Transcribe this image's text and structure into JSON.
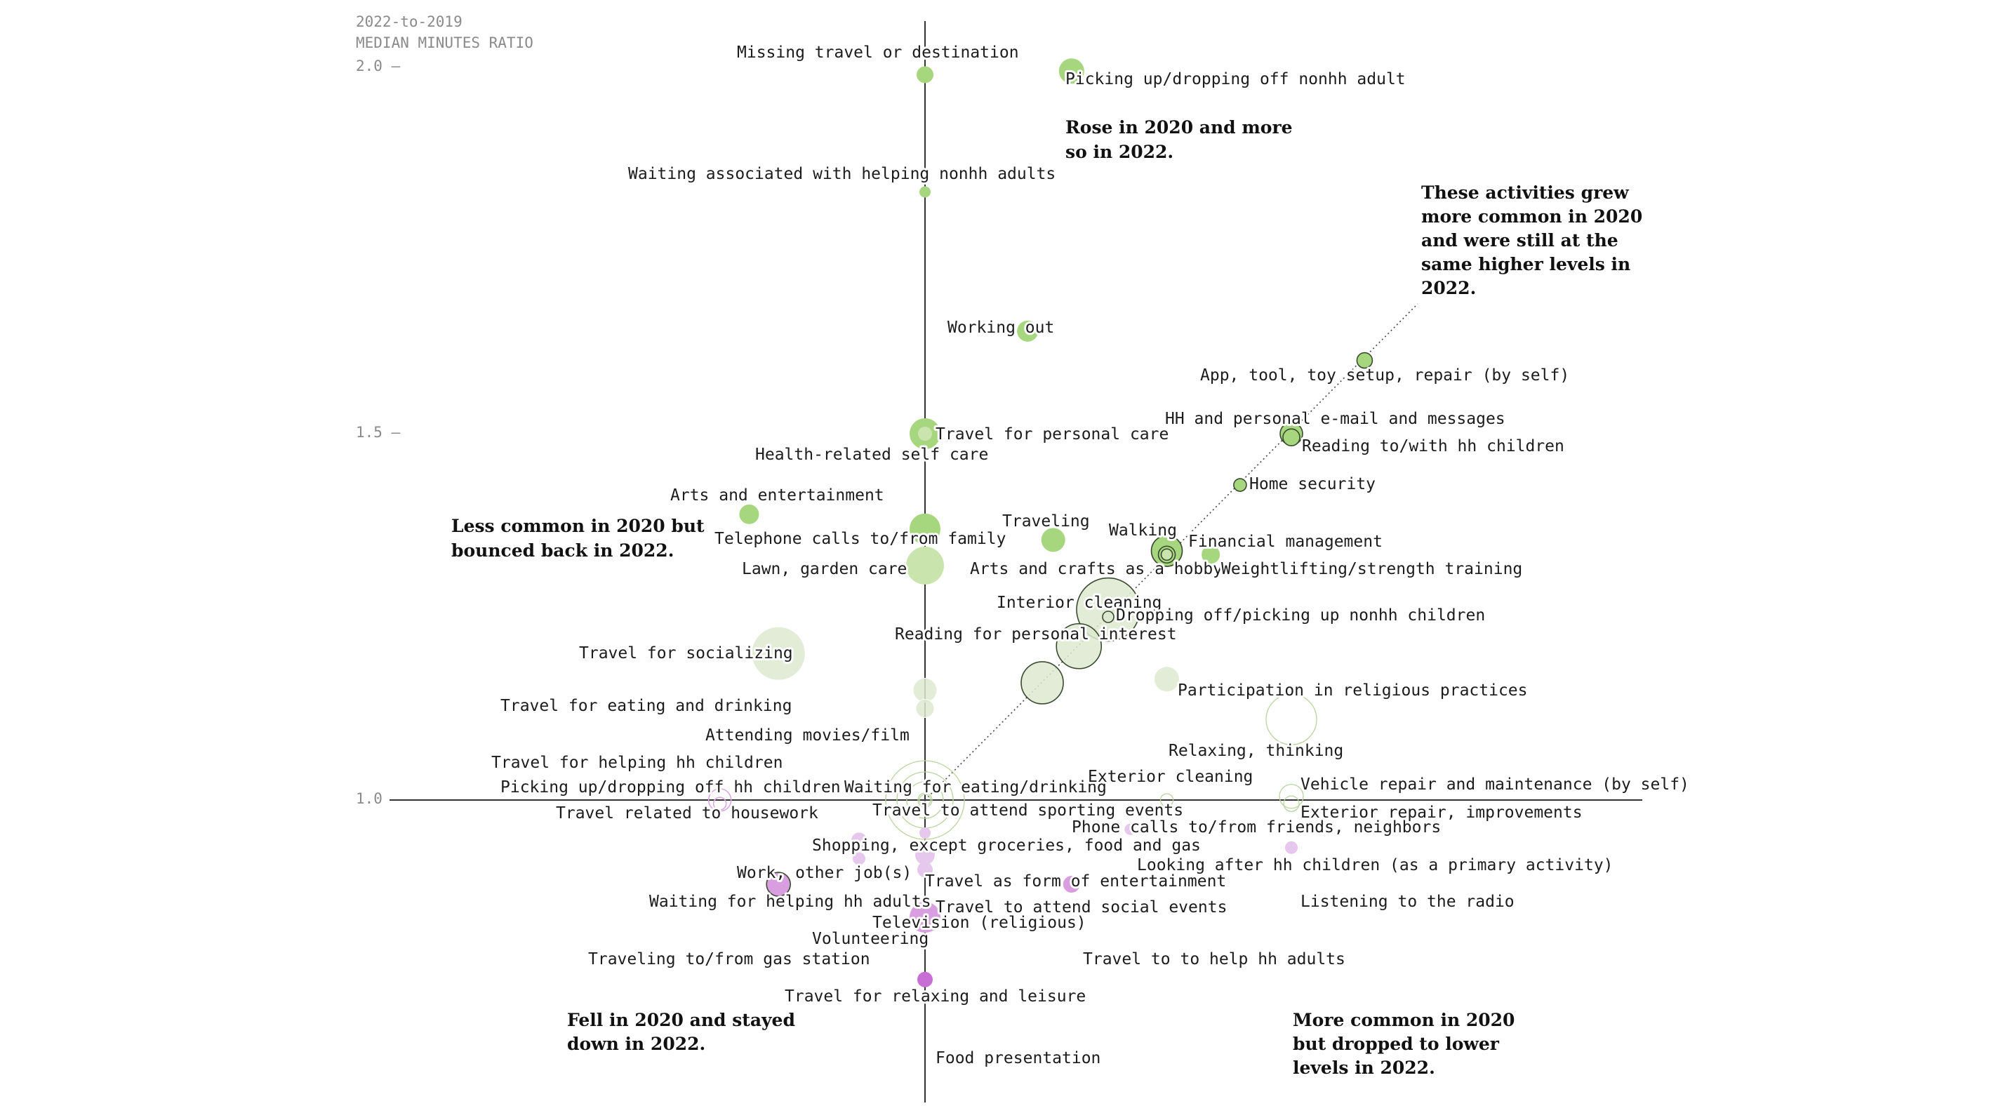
{
  "chart_data": {
    "type": "scatter",
    "title": "",
    "ylabel_line1": "2022-to-2019",
    "ylabel_line2": "MEDIAN MINUTES RATIO",
    "ylim": [
      0.58,
      2.08
    ],
    "xlim": [
      0.58,
      2.08
    ],
    "y_ticks": [
      {
        "value": 2.0,
        "label": "2.0 —"
      },
      {
        "value": 1.5,
        "label": "1.5 —"
      },
      {
        "value": 1.0,
        "label": "1.0"
      }
    ],
    "colors": {
      "rose": "#a6d67e",
      "bounced": "#c9e5ad",
      "stayed": "#dde9d0",
      "fell": "#d99ee0",
      "dropped": "#e6c8ec",
      "strong_fell": "#c86fd6",
      "outline": "#3a4a30"
    },
    "annotations": [
      {
        "lines": [
          "Rose in 2020 and more",
          "so in 2022."
        ]
      },
      {
        "lines": [
          "These activities grew",
          "more common in 2020",
          "and were still at the",
          "same higher levels in",
          "2022."
        ]
      },
      {
        "lines": [
          "Less common in 2020 but",
          "bounced back in 2022."
        ]
      },
      {
        "lines": [
          "Fell in 2020 and stayed",
          "down in 2022."
        ]
      },
      {
        "lines": [
          "More common in 2020",
          "but dropped to lower",
          "levels in 2022."
        ]
      }
    ],
    "points": [
      {
        "label": "Missing travel or destination",
        "x": 1.0,
        "y": 1.99,
        "size": 12,
        "group": "rose",
        "ring": false
      },
      {
        "label": "Picking up/dropping off nonhh adult",
        "x": 1.2,
        "y": 1.995,
        "size": 18,
        "group": "rose",
        "ring": false
      },
      {
        "label": "Waiting associated with helping nonhh adults",
        "x": 1.0,
        "y": 1.83,
        "size": 8,
        "group": "rose",
        "ring": false
      },
      {
        "label": "Working out",
        "x": 1.14,
        "y": 1.64,
        "size": 15,
        "group": "rose",
        "ring": false
      },
      {
        "label": "App, tool, toy setup, repair (by self)",
        "x": 1.6,
        "y": 1.6,
        "size": 11,
        "group": "rose",
        "ring": true
      },
      {
        "label": "HH and personal e-mail and messages",
        "x": 1.5,
        "y": 1.5,
        "size": 16,
        "group": "rose",
        "ring": true
      },
      {
        "label": "Reading to/with hh children",
        "x": 1.5,
        "y": 1.495,
        "size": 12,
        "group": "rose",
        "ring": true
      },
      {
        "label": "Travel for personal care",
        "x": 1.0,
        "y": 1.5,
        "size": 22,
        "group": "rose",
        "ring": false
      },
      {
        "label": "Health-related self care",
        "x": 1.0,
        "y": 1.5,
        "size": 10,
        "group": "bounced",
        "ring": false
      },
      {
        "label": "Arts and entertainment",
        "x": 0.76,
        "y": 1.39,
        "size": 14,
        "group": "rose",
        "ring": false
      },
      {
        "label": "Home security",
        "x": 1.43,
        "y": 1.43,
        "size": 9,
        "group": "rose",
        "ring": true
      },
      {
        "label": "Telephone calls to/from family",
        "x": 1.0,
        "y": 1.37,
        "size": 22,
        "group": "rose",
        "ring": false
      },
      {
        "label": "Traveling",
        "x": 1.175,
        "y": 1.355,
        "size": 17,
        "group": "rose",
        "ring": false
      },
      {
        "label": "Walking",
        "x": 1.33,
        "y": 1.34,
        "size": 22,
        "group": "rose",
        "ring": true
      },
      {
        "label": "Financial management",
        "x": 1.33,
        "y": 1.335,
        "size": 12,
        "group": "rose",
        "ring": true
      },
      {
        "label": "Arts and crafts as a hobby",
        "x": 1.39,
        "y": 1.335,
        "size": 13,
        "group": "rose",
        "ring": false
      },
      {
        "label": "Weightlifting/strength training",
        "x": 1.33,
        "y": 1.335,
        "size": 8,
        "group": "bounced",
        "ring": true
      },
      {
        "label": "Lawn, garden care",
        "x": 1.0,
        "y": 1.32,
        "size": 27,
        "group": "bounced",
        "ring": false
      },
      {
        "label": "Interior cleaning",
        "x": 1.25,
        "y": 1.26,
        "size": 45,
        "group": "stayed",
        "ring": true
      },
      {
        "label": "Dropping off/picking up nonhh children",
        "x": 1.25,
        "y": 1.25,
        "size": 8,
        "group": "stayed",
        "ring": true
      },
      {
        "label": "Reading for personal interest",
        "x": 1.21,
        "y": 1.21,
        "size": 32,
        "group": "stayed",
        "ring": true
      },
      {
        "label": "Travel for socializing",
        "x": 0.8,
        "y": 1.2,
        "size": 38,
        "group": "stayed",
        "ring": false
      },
      {
        "label": "Participation in religious practices",
        "x": 1.33,
        "y": 1.165,
        "size": 18,
        "group": "stayed",
        "ring": false
      },
      {
        "label": "Travel for eating and drinking",
        "x": 1.0,
        "y": 1.15,
        "size": 17,
        "group": "stayed",
        "ring": false
      },
      {
        "label": "Attending movies/film",
        "x": 1.0,
        "y": 1.125,
        "size": 13,
        "group": "stayed",
        "ring": false
      },
      {
        "label": "Travel for helping hh children",
        "x": 1.16,
        "y": 1.16,
        "size": 30,
        "group": "stayed",
        "ring": true
      },
      {
        "label": "Relaxing, thinking",
        "x": 1.5,
        "y": 1.11,
        "size": 36,
        "group": "ring-only",
        "ring": false
      },
      {
        "label": "Picking up/dropping off hh children",
        "x": 0.72,
        "y": 1.0,
        "size": 16,
        "group": "ring-only-fell",
        "ring": false
      },
      {
        "label": "Travel related to housework",
        "x": 0.72,
        "y": 0.995,
        "size": 9,
        "group": "ring-only-fell",
        "ring": false
      },
      {
        "label": "Waiting for eating/drinking",
        "x": 1.0,
        "y": 1.0,
        "size": 10,
        "group": "ring-only",
        "ring": false
      },
      {
        "label": "Exterior cleaning",
        "x": 1.33,
        "y": 1.0,
        "size": 9,
        "group": "ring-only",
        "ring": false
      },
      {
        "label": "Vehicle repair and maintenance (by self)",
        "x": 1.5,
        "y": 1.005,
        "size": 17,
        "group": "ring-only",
        "ring": false
      },
      {
        "label": "Exterior repair, improvements",
        "x": 1.5,
        "y": 0.995,
        "size": 11,
        "group": "ring-only",
        "ring": false
      },
      {
        "label": "Travel to attend sporting events",
        "x": 1.0,
        "y": 1.0,
        "size": 8,
        "group": "ring-only",
        "ring": false
      },
      {
        "label": "Phone calls to/from friends, neighbors",
        "x": 1.0,
        "y": 1.0,
        "size": 40,
        "group": "ring-only",
        "ring": false
      },
      {
        "label": "Shopping, except groceries, food and gas",
        "x": 1.0,
        "y": 1.0,
        "size": 26,
        "group": "ring-only",
        "ring": false
      },
      {
        "label": "Looking after hh children (as a primary activity)",
        "x": 1.0,
        "y": 1.0,
        "size": 56,
        "group": "ring-only",
        "ring": false
      },
      {
        "label": "Work, other job(s)",
        "x": 0.91,
        "y": 0.945,
        "size": 11,
        "group": "dropped",
        "ring": false
      },
      {
        "label": "Travel as form of entertainment",
        "x": 1.0,
        "y": 0.955,
        "size": 8,
        "group": "dropped",
        "ring": false
      },
      {
        "label": "Travel to attend social events",
        "x": 1.28,
        "y": 0.96,
        "size": 8,
        "group": "dropped",
        "ring": false
      },
      {
        "label": "Listening to the radio",
        "x": 1.5,
        "y": 0.935,
        "size": 9,
        "group": "dropped",
        "ring": false
      },
      {
        "label": "Waiting for helping hh adults",
        "x": 0.91,
        "y": 0.92,
        "size": 9,
        "group": "dropped",
        "ring": false
      },
      {
        "label": "Television (religious)",
        "x": 1.0,
        "y": 0.925,
        "size": 14,
        "group": "dropped",
        "ring": false
      },
      {
        "label": "Volunteering",
        "x": 1.0,
        "y": 0.905,
        "size": 11,
        "group": "dropped",
        "ring": false
      },
      {
        "label": "Traveling to/from gas station",
        "x": 0.8,
        "y": 0.885,
        "size": 17,
        "group": "fell",
        "ring": true
      },
      {
        "label": "Travel to to help hh adults",
        "x": 1.2,
        "y": 0.885,
        "size": 12,
        "group": "fell",
        "ring": false
      },
      {
        "label": "Travel for relaxing and leisure",
        "x": 1.0,
        "y": 0.84,
        "size": 22,
        "group": "fell",
        "ring": false
      },
      {
        "label": "Food presentation",
        "x": 1.0,
        "y": 0.755,
        "size": 11,
        "group": "strong_fell",
        "ring": false
      }
    ]
  }
}
